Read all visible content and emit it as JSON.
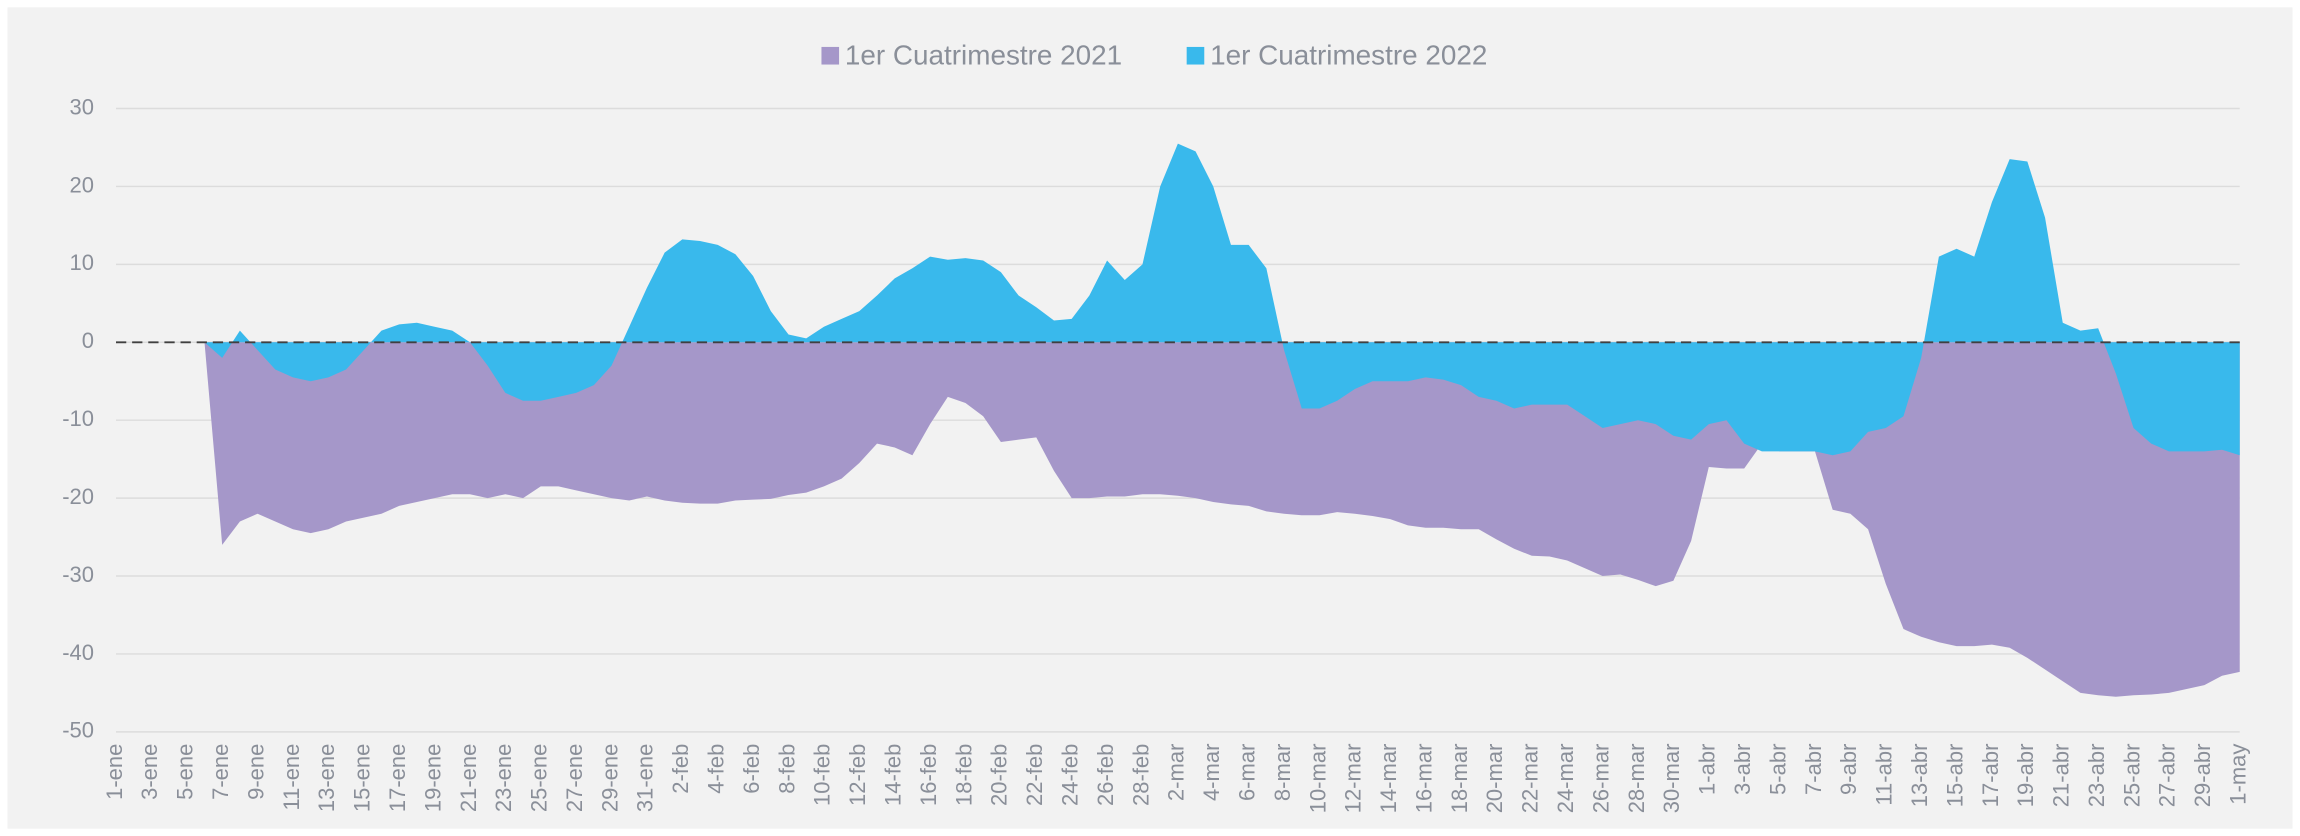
{
  "chart_data": {
    "type": "area",
    "categories": [
      "1-ene",
      null,
      "3-ene",
      null,
      "5-ene",
      null,
      "7-ene",
      null,
      "9-ene",
      null,
      "11-ene",
      null,
      "13-ene",
      null,
      "15-ene",
      null,
      "17-ene",
      null,
      "19-ene",
      null,
      "21-ene",
      null,
      "23-ene",
      null,
      "25-ene",
      null,
      "27-ene",
      null,
      "29-ene",
      null,
      "31-ene",
      null,
      "2-feb",
      null,
      "4-feb",
      null,
      "6-feb",
      null,
      "8-feb",
      null,
      "10-feb",
      null,
      "12-feb",
      null,
      "14-feb",
      null,
      "16-feb",
      null,
      "18-feb",
      null,
      "20-feb",
      null,
      "22-feb",
      null,
      "24-feb",
      null,
      "26-feb",
      null,
      "28-feb",
      null,
      "2-mar",
      null,
      "4-mar",
      null,
      "6-mar",
      null,
      "8-mar",
      null,
      "10-mar",
      null,
      "12-mar",
      null,
      "14-mar",
      null,
      "16-mar",
      null,
      "18-mar",
      null,
      "20-mar",
      null,
      "22-mar",
      null,
      "24-mar",
      null,
      "26-mar",
      null,
      "28-mar",
      null,
      "30-mar",
      null,
      "1-abr",
      null,
      "3-abr",
      null,
      "5-abr",
      null,
      "7-abr",
      null,
      "9-abr",
      null,
      "11-abr",
      null,
      "13-abr",
      null,
      "15-abr",
      null,
      "17-abr",
      null,
      "19-abr",
      null,
      "21-abr",
      null,
      "23-abr",
      null,
      "25-abr",
      null,
      "27-abr",
      null,
      "29-abr",
      null,
      "1-may"
    ],
    "series": [
      {
        "name": "1er Cuatrimestre 2021",
        "color": "#a597c9",
        "values": [
          null,
          null,
          null,
          null,
          null,
          0,
          -26,
          -23,
          -22,
          -23,
          -24,
          -24.5,
          -24,
          -23,
          -22.5,
          -22,
          -21,
          -20.5,
          -20,
          -19.5,
          -19.5,
          -20,
          -19.5,
          -20,
          -18.5,
          -18.5,
          -19,
          -19.5,
          -20,
          -20.3,
          -19.8,
          -20.3,
          -20.6,
          -20.7,
          -20.7,
          -20.3,
          -20.2,
          -20.1,
          -19.6,
          -19.3,
          -18.5,
          -17.5,
          -15.5,
          -13,
          -13.5,
          -14.5,
          -10.5,
          -7,
          -7.8,
          -9.5,
          -12.8,
          -12.5,
          -12.2,
          -16.5,
          -20,
          -20,
          -19.8,
          -19.8,
          -19.5,
          -19.5,
          -19.7,
          -20,
          -20.5,
          -20.8,
          -21,
          -21.7,
          -22,
          -22.2,
          -22.2,
          -21.8,
          -22,
          -22.3,
          -22.7,
          -23.5,
          -23.8,
          -23.8,
          -24,
          -24,
          -25.3,
          -26.5,
          -27.4,
          -27.5,
          -28,
          -29,
          -30,
          -29.8,
          -30.5,
          -31.3,
          -30.6,
          -25.5,
          -16,
          -16.2,
          -16.2,
          -13,
          -14,
          -14,
          -14,
          -21.5,
          -22,
          -24,
          -31,
          -36.8,
          -37.8,
          -38.5,
          -39,
          -39,
          -38.8,
          -39.2,
          -40.5,
          -42,
          -43.5,
          -45,
          -45.3,
          -45.5,
          -45.3,
          -45.2,
          -45,
          -44.5,
          -44,
          -42.8,
          -42.3
        ]
      },
      {
        "name": "1er Cuatrimestre 2022",
        "color": "#39b9ec",
        "values": [
          null,
          null,
          null,
          null,
          null,
          0,
          -2,
          1.5,
          -1,
          -3.5,
          -4.5,
          -5,
          -4.5,
          -3.5,
          -1,
          1.5,
          2.3,
          2.5,
          2,
          1.5,
          0,
          -3,
          -6.5,
          -7.5,
          -7.5,
          -7,
          -6.5,
          -5.5,
          -3,
          2,
          7,
          11.5,
          13.2,
          13,
          12.5,
          11.3,
          8.5,
          4,
          1,
          0.5,
          2,
          3,
          4,
          6,
          8.2,
          9.5,
          11,
          10.6,
          10.8,
          10.5,
          9,
          6,
          4.5,
          2.8,
          3,
          6,
          10.5,
          8,
          10,
          20,
          25.5,
          24.5,
          20,
          12.5,
          12.5,
          9.5,
          -1,
          -8.5,
          -8.5,
          -7.5,
          -6,
          -5,
          -5,
          -5,
          -4.5,
          -4.8,
          -5.5,
          -7,
          -7.5,
          -8.5,
          -8,
          -8,
          -8,
          -9.5,
          -11,
          -10.5,
          -10,
          -10.5,
          -12,
          -12.5,
          -10.5,
          -10,
          -13,
          -14,
          -14,
          -14,
          -14,
          -14.5,
          -14,
          -11.5,
          -11,
          -9.5,
          -2,
          11,
          12,
          11,
          18,
          23.5,
          23.2,
          16,
          2.5,
          1.5,
          1.8,
          -4,
          -11,
          -13,
          -14,
          -14,
          -14,
          -13.8,
          -14.5
        ]
      }
    ],
    "ylim": [
      -50,
      30
    ],
    "yticks": [
      -50,
      -40,
      -30,
      -20,
      -10,
      0,
      10,
      20,
      30
    ],
    "grid": true,
    "legend": "top"
  }
}
